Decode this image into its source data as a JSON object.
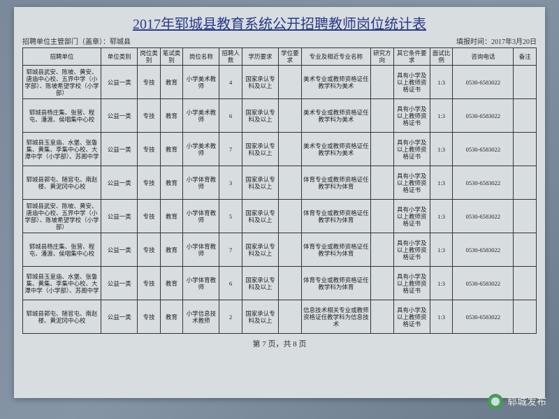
{
  "title": "2017年郓城县教育系统公开招聘教师岗位统计表",
  "subheader_left": "招聘单位主管部门（盖章）：郓城县",
  "subheader_right": "填报时间：2017年3月20日",
  "columns": [
    "招聘单位",
    "单位类别",
    "岗位类别",
    "笔试类别",
    "岗位名称",
    "招聘人数",
    "学历要求",
    "学位要求",
    "专业及相近专业名称",
    "研究方向",
    "其它条件要求",
    "面试比例",
    "咨询电话",
    "备注"
  ],
  "rows": [
    {
      "unit": "郓城县武安、陈坡、黄安、唐庙中心校、五界中学（小学部）、陈坡希望学校（小学部）",
      "cat": "公益一类",
      "post": "专技",
      "exam": "教育",
      "name": "小学美术教师",
      "num": "4",
      "edu": "国家承认专科及以上",
      "deg": "",
      "major": "美术专业或教师资格证任教学科为美术",
      "dir": "",
      "other": "具有小学及以上教师资格证书",
      "ratio": "1:3",
      "phone": "0530-6583022",
      "note": ""
    },
    {
      "unit": "郓城县杨庄集、张营、程屯、潘渡、侯咽集中心校",
      "cat": "公益一类",
      "post": "专技",
      "exam": "教育",
      "name": "小学美术教师",
      "num": "6",
      "edu": "国家承认专科及以上",
      "deg": "",
      "major": "美术专业或教师资格证任教学科为美术",
      "dir": "",
      "other": "具有小学及以上教师资格证书",
      "ratio": "1:3",
      "phone": "0530-6583022",
      "note": ""
    },
    {
      "unit": "郓城县玉皇庙、水堡、张鲁集、黄集、李集中心校、大潭中学（小学部）、苏阁中学",
      "cat": "公益一类",
      "post": "专技",
      "exam": "教育",
      "name": "小学美术教师",
      "num": "7",
      "edu": "国家承认专科及以上",
      "deg": "",
      "major": "美术专业或教师资格证任教学科为美术",
      "dir": "",
      "other": "具有小学及以上教师资格证书",
      "ratio": "1:3",
      "phone": "0530-6583022",
      "note": ""
    },
    {
      "unit": "郓城县郭屯、随官屯、南赵楼、黄泥冈中心校",
      "cat": "公益一类",
      "post": "专技",
      "exam": "教育",
      "name": "小学体育教师",
      "num": "3",
      "edu": "国家承认专科及以上",
      "deg": "",
      "major": "体育专业或教师资格证任教学科为体育",
      "dir": "",
      "other": "具有小学及以上教师资格证书",
      "ratio": "1:3",
      "phone": "0530-6583022",
      "note": ""
    },
    {
      "unit": "郓城县武安、陈坡、黄安、唐庙中心校、五界中学（小学部）、陈坡希望学校（小学部）",
      "cat": "公益一类",
      "post": "专技",
      "exam": "教育",
      "name": "小学体育教师",
      "num": "5",
      "edu": "国家承认专科及以上",
      "deg": "",
      "major": "体育专业或教师资格证任教学科为体育",
      "dir": "",
      "other": "具有小学及以上教师资格证书",
      "ratio": "1:3",
      "phone": "0530-6583022",
      "note": ""
    },
    {
      "unit": "郓城县杨庄集、张营、程屯、潘渡、侯咽集中心校",
      "cat": "公益一类",
      "post": "专技",
      "exam": "教育",
      "name": "小学体育教师",
      "num": "7",
      "edu": "国家承认专科及以上",
      "deg": "",
      "major": "体育专业或教师资格证任教学科为体育",
      "dir": "",
      "other": "具有小学及以上教师资格证书",
      "ratio": "1:3",
      "phone": "0530-6583022",
      "note": ""
    },
    {
      "unit": "郓城县玉皇庙、水堡、张鲁集、黄集、李集中心校、大潭中学（小学部）、苏阁中学",
      "cat": "公益一类",
      "post": "专技",
      "exam": "教育",
      "name": "小学体育教师",
      "num": "6",
      "edu": "国家承认专科及以上",
      "deg": "",
      "major": "体育专业或教师资格证任教学科为体育",
      "dir": "",
      "other": "具有小学及以上教师资格证书",
      "ratio": "1:3",
      "phone": "0530-6583022",
      "note": ""
    },
    {
      "unit": "郓城县郭屯、随官屯、南赵楼、黄泥冈中心校",
      "cat": "公益一类",
      "post": "专技",
      "exam": "教育",
      "name": "小学信息技术教师",
      "num": "2",
      "edu": "国家承认专科及以上",
      "deg": "",
      "major": "信息技术相关专业或教师资格证任教学科为信息技术",
      "dir": "",
      "other": "具有小学及以上教师资格证书",
      "ratio": "1:3",
      "phone": "0530-6583022",
      "note": ""
    }
  ],
  "footer": "第 7 页，共 8 页",
  "watermark": "郓城发布"
}
